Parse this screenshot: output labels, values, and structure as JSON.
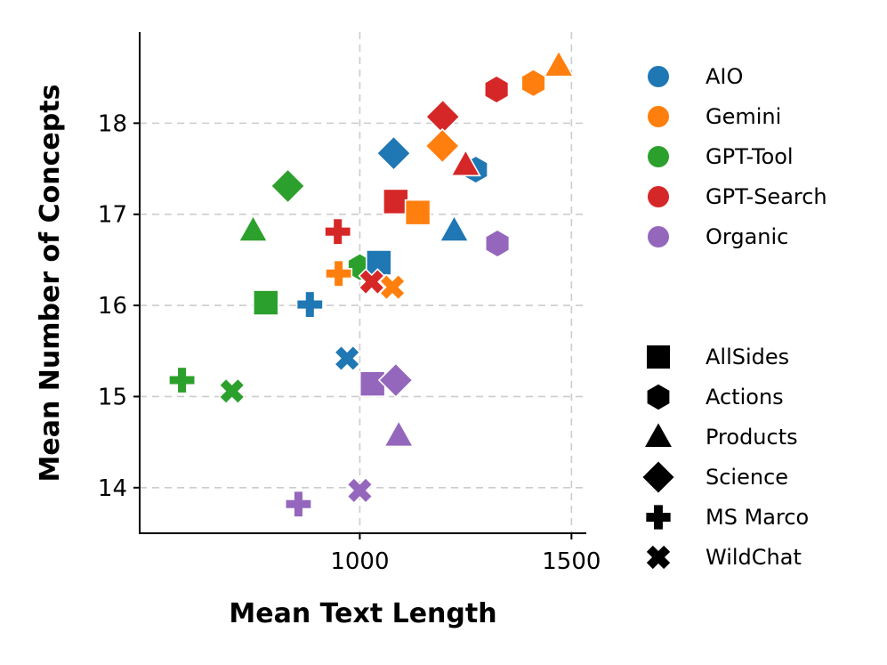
{
  "chart_data": {
    "type": "scatter",
    "xlabel": "Mean Text Length",
    "ylabel": "Mean Number of Concepts",
    "xlim": [
      480,
      1535
    ],
    "ylim": [
      13.5,
      19.0
    ],
    "xticks": [
      1000,
      1500
    ],
    "yticks": [
      14,
      15,
      16,
      17,
      18
    ],
    "grid": true,
    "legend_position": "right",
    "colors": {
      "AIO": "#1f77b4",
      "Gemini": "#ff7f0e",
      "GPT-Tool": "#2ca02c",
      "GPT-Search": "#d62728",
      "Organic": "#9467bd"
    },
    "color_legend": [
      "AIO",
      "Gemini",
      "GPT-Tool",
      "GPT-Search",
      "Organic"
    ],
    "shape_legend": [
      {
        "label": "AllSides",
        "shape": "square"
      },
      {
        "label": "Actions",
        "shape": "hexagon"
      },
      {
        "label": "Products",
        "shape": "triangle"
      },
      {
        "label": "Science",
        "shape": "diamond"
      },
      {
        "label": "MS Marco",
        "shape": "plus"
      },
      {
        "label": "WildChat",
        "shape": "x"
      }
    ],
    "points": [
      {
        "series": "Gemini",
        "dataset": "Products",
        "x": 1470,
        "y": 18.63
      },
      {
        "series": "Gemini",
        "dataset": "Actions",
        "x": 1410,
        "y": 18.44
      },
      {
        "series": "GPT-Search",
        "dataset": "Actions",
        "x": 1323,
        "y": 18.37
      },
      {
        "series": "GPT-Search",
        "dataset": "Science",
        "x": 1196,
        "y": 18.07
      },
      {
        "series": "Gemini",
        "dataset": "Science",
        "x": 1195,
        "y": 17.75
      },
      {
        "series": "AIO",
        "dataset": "Actions",
        "x": 1274,
        "y": 17.49
      },
      {
        "series": "GPT-Search",
        "dataset": "Products",
        "x": 1250,
        "y": 17.54
      },
      {
        "series": "AIO",
        "dataset": "Science",
        "x": 1080,
        "y": 17.67
      },
      {
        "series": "GPT-Tool",
        "dataset": "Science",
        "x": 830,
        "y": 17.31
      },
      {
        "series": "GPT-Search",
        "dataset": "AllSides",
        "x": 1085,
        "y": 17.14
      },
      {
        "series": "Gemini",
        "dataset": "AllSides",
        "x": 1137,
        "y": 17.02
      },
      {
        "series": "AIO",
        "dataset": "Products",
        "x": 1223,
        "y": 16.82
      },
      {
        "series": "Organic",
        "dataset": "Actions",
        "x": 1325,
        "y": 16.68
      },
      {
        "series": "GPT-Tool",
        "dataset": "Products",
        "x": 748,
        "y": 16.82
      },
      {
        "series": "GPT-Search",
        "dataset": "MS Marco",
        "x": 948,
        "y": 16.81
      },
      {
        "series": "GPT-Tool",
        "dataset": "Actions",
        "x": 1000,
        "y": 16.42
      },
      {
        "series": "AIO",
        "dataset": "AllSides",
        "x": 1045,
        "y": 16.47
      },
      {
        "series": "Gemini",
        "dataset": "MS Marco",
        "x": 950,
        "y": 16.35
      },
      {
        "series": "GPT-Search",
        "dataset": "WildChat",
        "x": 1028,
        "y": 16.26
      },
      {
        "series": "Gemini",
        "dataset": "WildChat",
        "x": 1077,
        "y": 16.2
      },
      {
        "series": "GPT-Tool",
        "dataset": "AllSides",
        "x": 778,
        "y": 16.03
      },
      {
        "series": "AIO",
        "dataset": "MS Marco",
        "x": 882,
        "y": 16.01
      },
      {
        "series": "AIO",
        "dataset": "WildChat",
        "x": 970,
        "y": 15.42
      },
      {
        "series": "GPT-Tool",
        "dataset": "MS Marco",
        "x": 580,
        "y": 15.18
      },
      {
        "series": "GPT-Tool",
        "dataset": "WildChat",
        "x": 698,
        "y": 15.06
      },
      {
        "series": "Organic",
        "dataset": "AllSides",
        "x": 1030,
        "y": 15.14
      },
      {
        "series": "Organic",
        "dataset": "Science",
        "x": 1085,
        "y": 15.18
      },
      {
        "series": "Organic",
        "dataset": "Products",
        "x": 1092,
        "y": 14.57
      },
      {
        "series": "Organic",
        "dataset": "WildChat",
        "x": 1000,
        "y": 13.97
      },
      {
        "series": "Organic",
        "dataset": "MS Marco",
        "x": 855,
        "y": 13.82
      }
    ]
  }
}
